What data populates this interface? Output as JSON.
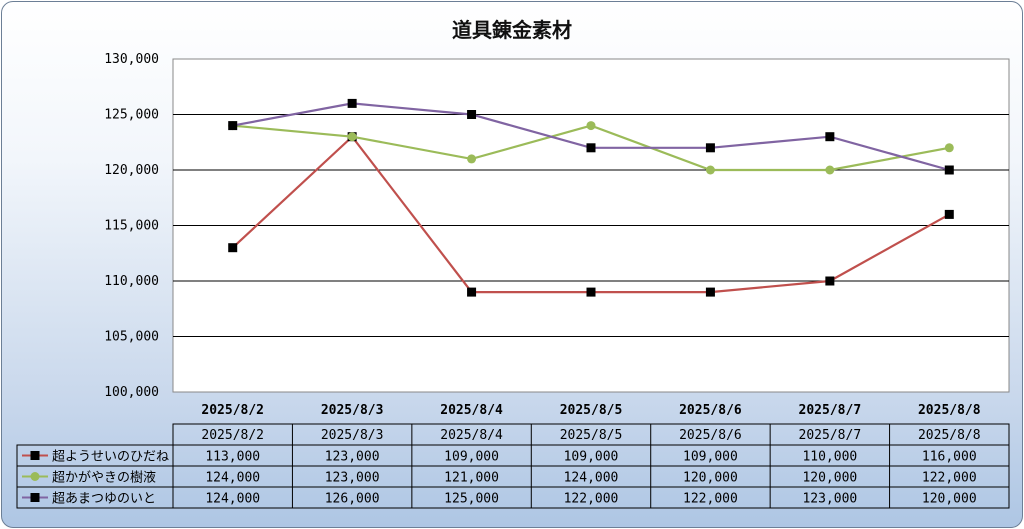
{
  "chart_data": {
    "type": "line",
    "title": "道具錬金素材",
    "categories": [
      "2025/8/2",
      "2025/8/3",
      "2025/8/4",
      "2025/8/5",
      "2025/8/6",
      "2025/8/7",
      "2025/8/8"
    ],
    "ylim": [
      100000,
      130000
    ],
    "y_ticks": [
      100000,
      105000,
      110000,
      115000,
      120000,
      125000,
      130000
    ],
    "y_tick_labels": [
      "100,000",
      "105,000",
      "110,000",
      "115,000",
      "120,000",
      "125,000",
      "130,000"
    ],
    "grid": true,
    "legend_placement": "data-table",
    "series": [
      {
        "name": "超ようせいのひだね",
        "values": [
          113000,
          123000,
          109000,
          109000,
          109000,
          110000,
          116000
        ],
        "value_labels": [
          "113,000",
          "123,000",
          "109,000",
          "109,000",
          "109,000",
          "110,000",
          "116,000"
        ],
        "line_color": "#c0504d",
        "marker": "square",
        "marker_color": "#000000"
      },
      {
        "name": "超かがやきの樹液",
        "values": [
          124000,
          123000,
          121000,
          124000,
          120000,
          120000,
          122000
        ],
        "value_labels": [
          "124,000",
          "123,000",
          "121,000",
          "124,000",
          "120,000",
          "120,000",
          "122,000"
        ],
        "line_color": "#9bbb59",
        "marker": "circle",
        "marker_color": "#9bbb59"
      },
      {
        "name": "超あまつゆのいと",
        "values": [
          124000,
          126000,
          125000,
          122000,
          122000,
          123000,
          120000
        ],
        "value_labels": [
          "124,000",
          "126,000",
          "125,000",
          "122,000",
          "122,000",
          "123,000",
          "120,000"
        ],
        "line_color": "#8064a2",
        "marker": "square",
        "marker_color": "#000000"
      }
    ]
  }
}
